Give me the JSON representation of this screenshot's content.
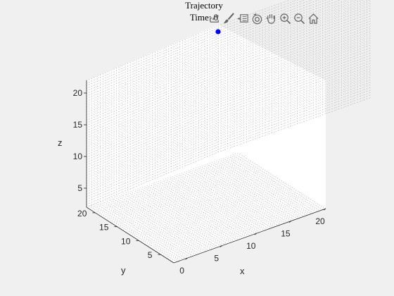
{
  "figure": {
    "title": "Trajectory",
    "time_label": "Time: 0"
  },
  "toolbar": [
    {
      "name": "export-icon"
    },
    {
      "name": "brush-icon"
    },
    {
      "name": "datatip-icon"
    },
    {
      "name": "rotate-3d-icon"
    },
    {
      "name": "pan-hand-icon"
    },
    {
      "name": "zoom-in-icon"
    },
    {
      "name": "zoom-out-icon"
    },
    {
      "name": "home-icon"
    }
  ],
  "axes": {
    "x_label": "x",
    "y_label": "y",
    "z_label": "z",
    "x_ticks": [
      "0",
      "5",
      "10",
      "15",
      "20"
    ],
    "y_ticks": [
      "5",
      "10",
      "15",
      "20"
    ],
    "z_ticks": [
      "5",
      "10",
      "15",
      "20"
    ],
    "grid_style": "dotted",
    "marker_color": "#0000ff",
    "plot_bg": "#ffffff"
  }
}
